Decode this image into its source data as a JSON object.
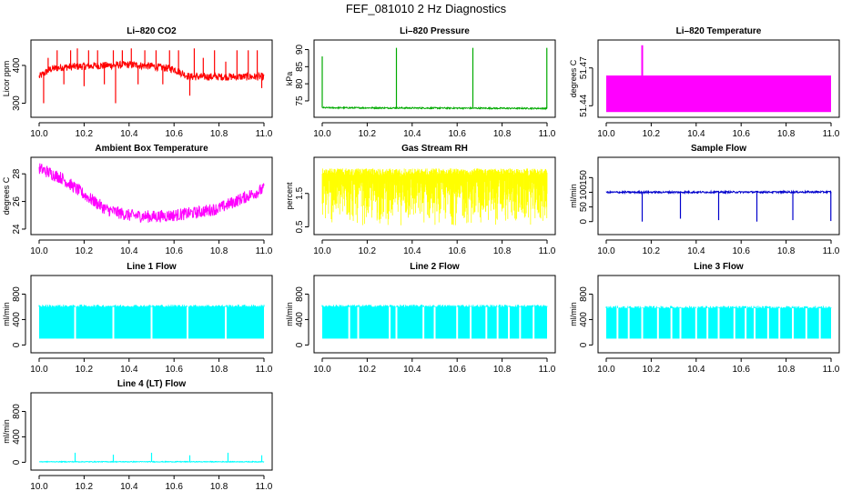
{
  "figure": {
    "title": "FEF_081010  2 Hz Diagnostics"
  },
  "chart_data": [
    {
      "type": "line",
      "title": "Li–820 CO2",
      "ylabel": "Licor ppm",
      "color": "#ff0000",
      "xlim": [
        10.0,
        11.0
      ],
      "ylim": [
        270,
        460
      ],
      "xticks": [
        "10.0",
        "10.2",
        "10.4",
        "10.6",
        "10.8",
        "11.0"
      ],
      "yticks": [
        300,
        400
      ],
      "baseline": [
        [
          10.0,
          370
        ],
        [
          10.05,
          390
        ],
        [
          10.1,
          395
        ],
        [
          10.2,
          398
        ],
        [
          10.3,
          400
        ],
        [
          10.4,
          402
        ],
        [
          10.5,
          398
        ],
        [
          10.6,
          390
        ],
        [
          10.65,
          375
        ],
        [
          10.67,
          370
        ],
        [
          11.0,
          370
        ]
      ],
      "noise": 10,
      "spikes": [
        [
          10.02,
          300
        ],
        [
          10.04,
          420
        ],
        [
          10.08,
          440
        ],
        [
          10.11,
          350
        ],
        [
          10.14,
          440
        ],
        [
          10.17,
          445
        ],
        [
          10.2,
          345
        ],
        [
          10.22,
          440
        ],
        [
          10.26,
          440
        ],
        [
          10.29,
          350
        ],
        [
          10.33,
          440
        ],
        [
          10.34,
          300
        ],
        [
          10.37,
          440
        ],
        [
          10.41,
          445
        ],
        [
          10.44,
          350
        ],
        [
          10.47,
          440
        ],
        [
          10.52,
          440
        ],
        [
          10.55,
          350
        ],
        [
          10.58,
          440
        ],
        [
          10.62,
          440
        ],
        [
          10.67,
          320
        ],
        [
          10.69,
          445
        ],
        [
          10.73,
          420
        ],
        [
          10.78,
          440
        ],
        [
          10.83,
          410
        ],
        [
          10.88,
          440
        ],
        [
          10.93,
          440
        ],
        [
          10.97,
          440
        ],
        [
          10.99,
          340
        ]
      ]
    },
    {
      "type": "line",
      "title": "Li–820 Pressure",
      "ylabel": "kPa",
      "color": "#00aa00",
      "xlim": [
        10.0,
        11.0
      ],
      "ylim": [
        71,
        92
      ],
      "xticks": [
        "10.0",
        "10.2",
        "10.4",
        "10.6",
        "10.8",
        "11.0"
      ],
      "yticks": [
        75,
        80,
        85,
        90
      ],
      "baseline": [
        [
          10.0,
          73
        ],
        [
          11.0,
          72.8
        ]
      ],
      "noise": 0.2,
      "spikes": [
        [
          10.0,
          88
        ],
        [
          10.33,
          90.5
        ],
        [
          10.67,
          90.5
        ],
        [
          10.999,
          90.5
        ]
      ]
    },
    {
      "type": "area",
      "title": "Li–820 Temperature",
      "ylabel": "degrees C",
      "color": "#ff00ff",
      "xlim": [
        10.0,
        11.0
      ],
      "ylim": [
        51.433,
        51.49
      ],
      "xticks": [
        "10.0",
        "10.2",
        "10.4",
        "10.6",
        "10.8",
        "11.0"
      ],
      "yticks": [
        "51.44",
        "51.47"
      ],
      "band": [
        51.435,
        51.464
      ],
      "spikes": [
        [
          10.16,
          51.488
        ]
      ]
    },
    {
      "type": "line",
      "title": "Ambient Box Temperature",
      "ylabel": "degrees C",
      "color": "#ff00ff",
      "xlim": [
        10.0,
        11.0
      ],
      "ylim": [
        23.8,
        29.0
      ],
      "xticks": [
        "10.0",
        "10.2",
        "10.4",
        "10.6",
        "10.8",
        "11.0"
      ],
      "yticks": [
        24,
        26,
        28
      ],
      "baseline": [
        [
          10.0,
          28.4
        ],
        [
          10.1,
          27.7
        ],
        [
          10.2,
          26.5
        ],
        [
          10.3,
          25.4
        ],
        [
          10.4,
          25.0
        ],
        [
          10.5,
          24.9
        ],
        [
          10.6,
          25.0
        ],
        [
          10.7,
          25.2
        ],
        [
          10.8,
          25.5
        ],
        [
          10.9,
          26.2
        ],
        [
          11.0,
          26.9
        ]
      ],
      "noise": 0.45
    },
    {
      "type": "area",
      "title": "Gas Stream RH",
      "ylabel": "percent",
      "color": "#ffff00",
      "xlim": [
        10.0,
        11.0
      ],
      "ylim": [
        0.35,
        2.5
      ],
      "xticks": [
        "10.0",
        "10.2",
        "10.4",
        "10.6",
        "10.8",
        "11.0"
      ],
      "yticks": [
        "0.5",
        "1.5"
      ],
      "band": [
        0.5,
        2.25
      ],
      "dense": true
    },
    {
      "type": "line",
      "title": "Sample Flow",
      "ylabel": "ml/min",
      "color": "#0000cc",
      "xlim": [
        10.0,
        11.0
      ],
      "ylim": [
        -35,
        210
      ],
      "xticks": [
        "10.0",
        "10.2",
        "10.4",
        "10.6",
        "10.8",
        "11.0"
      ],
      "yticks": [
        0,
        50,
        100,
        150
      ],
      "baseline": [
        [
          10.0,
          100
        ],
        [
          11.0,
          101
        ]
      ],
      "noise": 3,
      "spikes": [
        [
          10.16,
          0
        ],
        [
          10.33,
          10
        ],
        [
          10.5,
          5
        ],
        [
          10.67,
          0
        ],
        [
          10.83,
          5
        ],
        [
          10.999,
          2
        ]
      ]
    },
    {
      "type": "area",
      "title": "Line 1 Flow",
      "ylabel": "ml/min",
      "color": "#00ffff",
      "xlim": [
        10.0,
        11.0
      ],
      "ylim": [
        -80,
        1050
      ],
      "xticks": [
        "10.0",
        "10.2",
        "10.4",
        "10.6",
        "10.8",
        "11.0"
      ],
      "yticks": [
        0,
        400,
        800
      ],
      "band": [
        100,
        600
      ],
      "gaps": [
        10.16,
        10.33,
        10.5,
        10.66,
        10.83
      ]
    },
    {
      "type": "area",
      "title": "Line 2 Flow",
      "ylabel": "ml/min",
      "color": "#00ffff",
      "xlim": [
        10.0,
        11.0
      ],
      "ylim": [
        -80,
        1050
      ],
      "xticks": [
        "10.0",
        "10.2",
        "10.4",
        "10.6",
        "10.8",
        "11.0"
      ],
      "yticks": [
        0,
        400,
        800
      ],
      "band": [
        100,
        600
      ],
      "gaps": [
        10.12,
        10.16,
        10.3,
        10.33,
        10.45,
        10.5,
        10.6,
        10.66,
        10.73,
        10.78,
        10.83,
        10.88,
        10.94
      ]
    },
    {
      "type": "area",
      "title": "Line 3 Flow",
      "ylabel": "ml/min",
      "color": "#00ffff",
      "xlim": [
        10.0,
        11.0
      ],
      "ylim": [
        -80,
        1050
      ],
      "xticks": [
        "10.0",
        "10.2",
        "10.4",
        "10.6",
        "10.8",
        "11.0"
      ],
      "yticks": [
        0,
        400,
        800
      ],
      "band": [
        100,
        580
      ],
      "gaps": [
        10.05,
        10.1,
        10.16,
        10.23,
        10.29,
        10.33,
        10.4,
        10.45,
        10.5,
        10.57,
        10.62,
        10.66,
        10.72,
        10.77,
        10.83,
        10.89,
        10.95
      ]
    },
    {
      "type": "line",
      "title": "Line 4 (LT) Flow",
      "ylabel": "ml/min",
      "color": "#00ffff",
      "xlim": [
        10.0,
        11.0
      ],
      "ylim": [
        -80,
        1050
      ],
      "xticks": [
        "10.0",
        "10.2",
        "10.4",
        "10.6",
        "10.8",
        "11.0"
      ],
      "yticks": [
        0,
        400,
        800
      ],
      "baseline": [
        [
          10.0,
          8
        ],
        [
          11.0,
          8
        ]
      ],
      "noise": 6,
      "spikes": [
        [
          10.16,
          150
        ],
        [
          10.33,
          120
        ],
        [
          10.5,
          150
        ],
        [
          10.67,
          110
        ],
        [
          10.84,
          150
        ],
        [
          10.99,
          110
        ]
      ]
    }
  ]
}
